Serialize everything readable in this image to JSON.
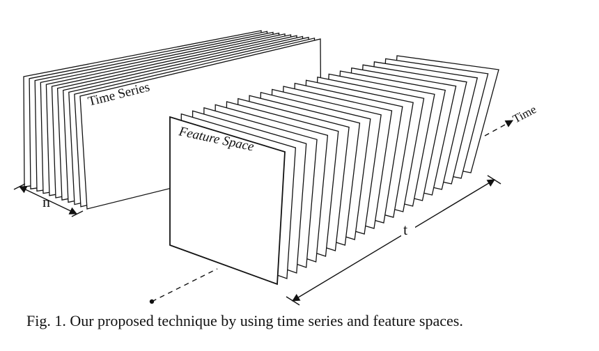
{
  "figure": {
    "labels": {
      "time_series": "Time Series",
      "feature_space": "Feature Space",
      "time_axis": "Time",
      "n_dim": "n",
      "t_dim": "t"
    },
    "caption": "Fig. 1. Our proposed technique by using time series and feature spaces."
  }
}
